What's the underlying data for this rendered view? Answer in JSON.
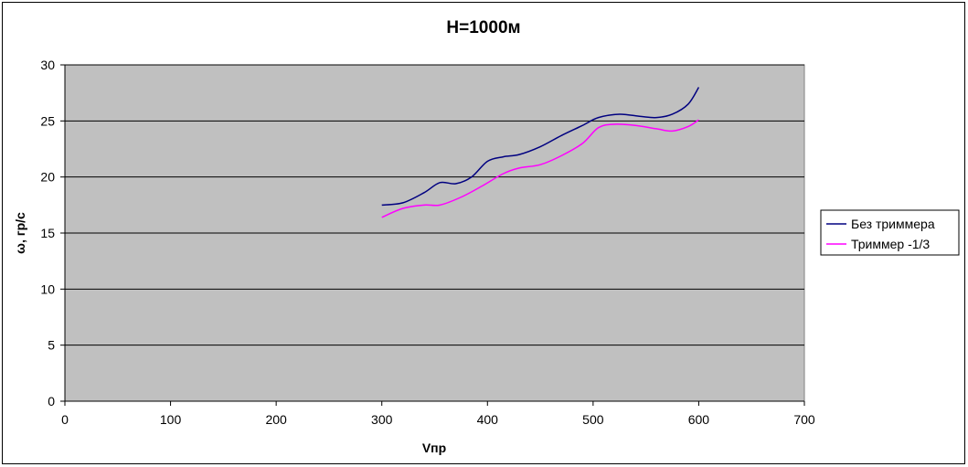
{
  "chart_data": {
    "type": "line",
    "title": "H=1000м",
    "xlabel": "Vпр",
    "ylabel": "ω, гр/с",
    "xlim": [
      0,
      700
    ],
    "ylim": [
      0,
      30
    ],
    "xticks": [
      0,
      100,
      200,
      300,
      400,
      500,
      600,
      700
    ],
    "yticks": [
      0,
      5,
      10,
      15,
      20,
      25,
      30
    ],
    "grid": "horizontal",
    "legend_position": "right",
    "plot_background": "#c0c0c0",
    "series": [
      {
        "name": "Без триммера",
        "color": "#000080",
        "x": [
          300,
          320,
          340,
          355,
          370,
          385,
          400,
          415,
          430,
          450,
          470,
          490,
          505,
          525,
          545,
          560,
          575,
          590,
          600
        ],
        "y": [
          17.5,
          17.7,
          18.6,
          19.5,
          19.4,
          20.0,
          21.4,
          21.8,
          22.0,
          22.7,
          23.7,
          24.6,
          25.3,
          25.6,
          25.4,
          25.3,
          25.6,
          26.5,
          28.0
        ]
      },
      {
        "name": "Триммер -1/3",
        "color": "#ff00ff",
        "x": [
          300,
          320,
          340,
          355,
          375,
          395,
          415,
          430,
          450,
          470,
          490,
          505,
          520,
          540,
          560,
          575,
          590,
          600
        ],
        "y": [
          16.4,
          17.2,
          17.5,
          17.5,
          18.2,
          19.2,
          20.3,
          20.8,
          21.1,
          21.9,
          23.0,
          24.4,
          24.7,
          24.6,
          24.3,
          24.1,
          24.5,
          25.1
        ]
      }
    ]
  }
}
